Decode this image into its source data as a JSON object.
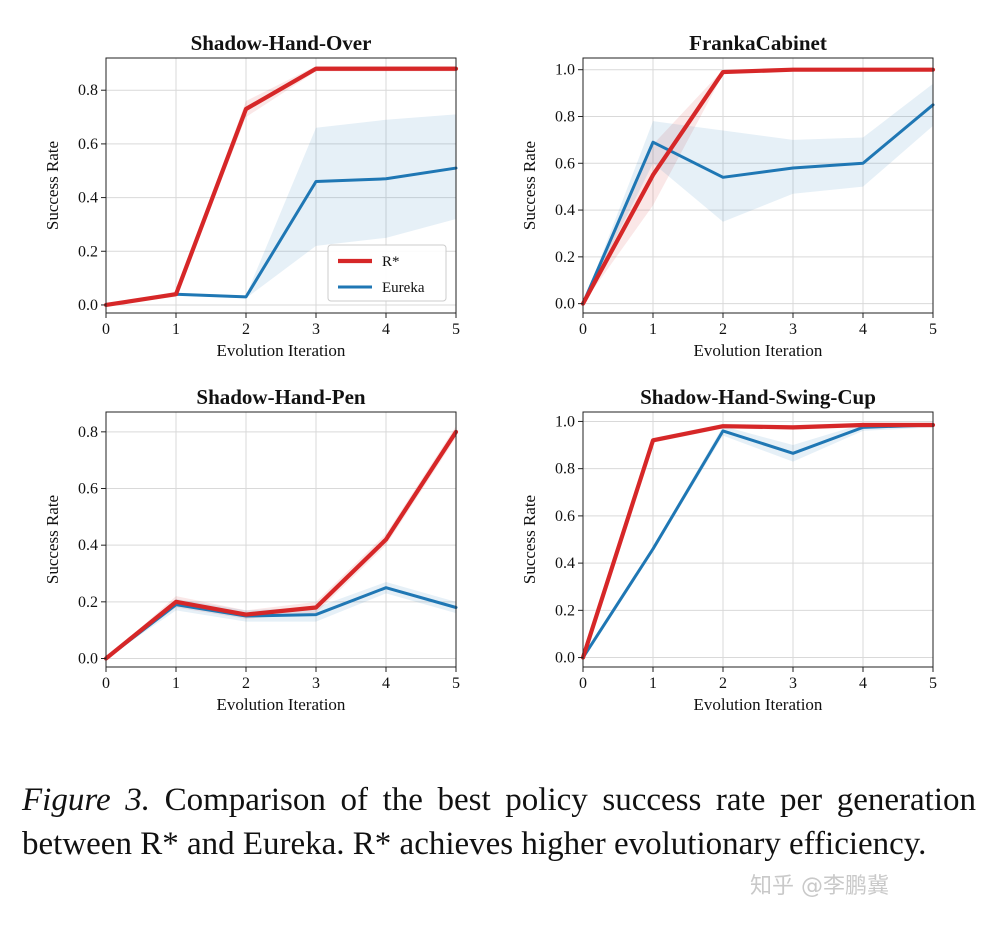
{
  "chart_data": [
    {
      "type": "line",
      "title": "Shadow-Hand-Over",
      "xlabel": "Evolution Iteration",
      "ylabel": "Success Rate",
      "x": [
        0,
        1,
        2,
        3,
        4,
        5
      ],
      "xticks": [
        "0",
        "1",
        "2",
        "3",
        "4",
        "5"
      ],
      "ylim": [
        -0.03,
        0.92
      ],
      "yticks": [
        "0.0",
        "0.2",
        "0.4",
        "0.6",
        "0.8"
      ],
      "ytick_values": [
        0,
        0.2,
        0.4,
        0.6,
        0.8
      ],
      "legend": {
        "position": "lower-right",
        "entries": [
          "R*",
          "Eureka"
        ]
      },
      "series": [
        {
          "name": "R*",
          "color": "#d62728",
          "values": [
            0.0,
            0.04,
            0.73,
            0.88,
            0.88,
            0.88
          ],
          "band_lower": [
            0.0,
            0.03,
            0.7,
            0.87,
            0.87,
            0.87
          ],
          "band_upper": [
            0.0,
            0.05,
            0.76,
            0.89,
            0.89,
            0.89
          ]
        },
        {
          "name": "Eureka",
          "color": "#1f77b4",
          "values": [
            0.0,
            0.04,
            0.03,
            0.46,
            0.47,
            0.51
          ],
          "band_lower": [
            0.0,
            0.035,
            0.025,
            0.22,
            0.25,
            0.32
          ],
          "band_upper": [
            0.0,
            0.045,
            0.035,
            0.66,
            0.69,
            0.71
          ]
        }
      ]
    },
    {
      "type": "line",
      "title": "FrankaCabinet",
      "xlabel": "Evolution Iteration",
      "ylabel": "Success Rate",
      "x": [
        0,
        1,
        2,
        3,
        4,
        5
      ],
      "xticks": [
        "0",
        "1",
        "2",
        "3",
        "4",
        "5"
      ],
      "ylim": [
        -0.04,
        1.05
      ],
      "yticks": [
        "0.0",
        "0.2",
        "0.4",
        "0.6",
        "0.8",
        "1.0"
      ],
      "ytick_values": [
        0,
        0.2,
        0.4,
        0.6,
        0.8,
        1.0
      ],
      "series": [
        {
          "name": "R*",
          "color": "#d62728",
          "values": [
            0.0,
            0.55,
            0.99,
            1.0,
            1.0,
            1.0
          ],
          "band_lower": [
            0.0,
            0.42,
            0.98,
            1.0,
            1.0,
            1.0
          ],
          "band_upper": [
            0.0,
            0.68,
            1.0,
            1.0,
            1.0,
            1.0
          ]
        },
        {
          "name": "Eureka",
          "color": "#1f77b4",
          "values": [
            0.0,
            0.69,
            0.54,
            0.58,
            0.6,
            0.85
          ],
          "band_lower": [
            0.0,
            0.6,
            0.35,
            0.47,
            0.5,
            0.76
          ],
          "band_upper": [
            0.0,
            0.78,
            0.74,
            0.7,
            0.71,
            0.94
          ]
        }
      ]
    },
    {
      "type": "line",
      "title": "Shadow-Hand-Pen",
      "xlabel": "Evolution Iteration",
      "ylabel": "Success Rate",
      "x": [
        0,
        1,
        2,
        3,
        4,
        5
      ],
      "xticks": [
        "0",
        "1",
        "2",
        "3",
        "4",
        "5"
      ],
      "ylim": [
        -0.03,
        0.87
      ],
      "yticks": [
        "0.0",
        "0.2",
        "0.4",
        "0.6",
        "0.8"
      ],
      "ytick_values": [
        0,
        0.2,
        0.4,
        0.6,
        0.8
      ],
      "series": [
        {
          "name": "R*",
          "color": "#d62728",
          "values": [
            0.0,
            0.2,
            0.155,
            0.18,
            0.42,
            0.8
          ],
          "band_lower": [
            0.0,
            0.18,
            0.14,
            0.16,
            0.4,
            0.78
          ],
          "band_upper": [
            0.0,
            0.22,
            0.17,
            0.2,
            0.44,
            0.82
          ]
        },
        {
          "name": "Eureka",
          "color": "#1f77b4",
          "values": [
            0.0,
            0.19,
            0.15,
            0.155,
            0.25,
            0.18
          ],
          "band_lower": [
            0.0,
            0.17,
            0.13,
            0.13,
            0.23,
            0.16
          ],
          "band_upper": [
            0.0,
            0.21,
            0.17,
            0.18,
            0.27,
            0.2
          ]
        }
      ]
    },
    {
      "type": "line",
      "title": "Shadow-Hand-Swing-Cup",
      "xlabel": "Evolution Iteration",
      "ylabel": "Success Rate",
      "x": [
        0,
        1,
        2,
        3,
        4,
        5
      ],
      "xticks": [
        "0",
        "1",
        "2",
        "3",
        "4",
        "5"
      ],
      "ylim": [
        -0.04,
        1.04
      ],
      "yticks": [
        "0.0",
        "0.2",
        "0.4",
        "0.6",
        "0.8",
        "1.0"
      ],
      "ytick_values": [
        0,
        0.2,
        0.4,
        0.6,
        0.8,
        1.0
      ],
      "series": [
        {
          "name": "R*",
          "color": "#d62728",
          "values": [
            0.0,
            0.92,
            0.98,
            0.975,
            0.985,
            0.985
          ],
          "band_lower": [
            0.0,
            0.91,
            0.97,
            0.965,
            0.975,
            0.975
          ],
          "band_upper": [
            0.0,
            0.93,
            0.99,
            0.985,
            0.995,
            0.995
          ]
        },
        {
          "name": "Eureka",
          "color": "#1f77b4",
          "values": [
            0.0,
            0.46,
            0.96,
            0.865,
            0.975,
            0.985
          ],
          "band_lower": [
            0.0,
            0.45,
            0.94,
            0.83,
            0.96,
            0.975
          ],
          "band_upper": [
            0.0,
            0.47,
            0.98,
            0.9,
            0.99,
            0.995
          ]
        }
      ]
    }
  ],
  "caption": {
    "label": "Figure 3.",
    "text": "Comparison of the best policy success rate per generation between R* and Eureka.  R* achieves higher evolutionary efficiency."
  },
  "watermark": "知乎 @李鹏冀"
}
